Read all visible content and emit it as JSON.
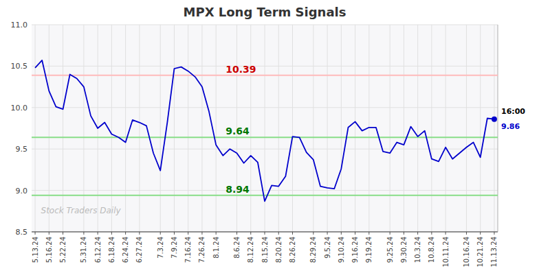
{
  "chart_data": {
    "type": "line",
    "title": "MPX Long Term Signals",
    "categories": [
      "5.13.24",
      null,
      "5.16.24",
      null,
      "5.22.24",
      null,
      null,
      "5.31.24",
      null,
      "6.12.24",
      null,
      "6.18.24",
      null,
      "6.24.24",
      null,
      "6.27.24",
      null,
      null,
      "7.3.24",
      null,
      "7.9.24",
      null,
      "7.16.24",
      null,
      "7.26.24",
      null,
      "8.1.24",
      null,
      null,
      "8.6.24",
      null,
      "8.12.24",
      null,
      "8.15.24",
      null,
      "8.20.24",
      null,
      "8.26.24",
      null,
      null,
      "8.29.24",
      null,
      "9.5.24",
      null,
      "9.10.24",
      null,
      "9.16.24",
      null,
      "9.19.24",
      null,
      null,
      "9.25.24",
      null,
      "9.30.24",
      null,
      "10.3.24",
      null,
      "10.8.24",
      null,
      "10.11.24",
      null,
      null,
      "10.16.24",
      null,
      "10.21.24",
      null,
      "11.13.24"
    ],
    "values": [
      10.48,
      10.57,
      10.2,
      10.01,
      9.98,
      10.4,
      10.35,
      10.25,
      9.9,
      9.75,
      9.82,
      9.68,
      9.64,
      9.58,
      9.85,
      9.82,
      9.78,
      9.45,
      9.24,
      9.82,
      10.47,
      10.49,
      10.44,
      10.37,
      10.25,
      9.95,
      9.55,
      9.42,
      9.5,
      9.45,
      9.33,
      9.42,
      9.34,
      8.87,
      9.06,
      9.05,
      9.17,
      9.65,
      9.64,
      9.46,
      9.37,
      9.05,
      9.03,
      9.02,
      9.26,
      9.76,
      9.83,
      9.72,
      9.76,
      9.76,
      9.47,
      9.45,
      9.58,
      9.55,
      9.77,
      9.65,
      9.72,
      9.38,
      9.35,
      9.52,
      9.38,
      9.45,
      9.52,
      9.58,
      9.4,
      9.87,
      9.86
    ],
    "color": "#0000cc",
    "ylim": [
      8.5,
      11.0
    ],
    "yticks": [
      8.5,
      {
        "value": 9,
        "label": "9.0"
      },
      9.5,
      {
        "value": 10,
        "label": "10.0"
      },
      10.5,
      {
        "value": 11,
        "label": "11.0"
      }
    ],
    "grid": true,
    "hlines": [
      {
        "value": 10.39,
        "label": "10.39",
        "color": "#ffbbbb",
        "label_color": "#cc0000"
      },
      {
        "value": 9.64,
        "label": "9.64",
        "color": "#88dd88",
        "label_color": "#007700"
      },
      {
        "value": 8.94,
        "label": "8.94",
        "color": "#88dd88",
        "label_color": "#007700"
      }
    ],
    "last_price": 9.86,
    "last_time": "16:00",
    "watermark": "Stock Traders Daily"
  }
}
